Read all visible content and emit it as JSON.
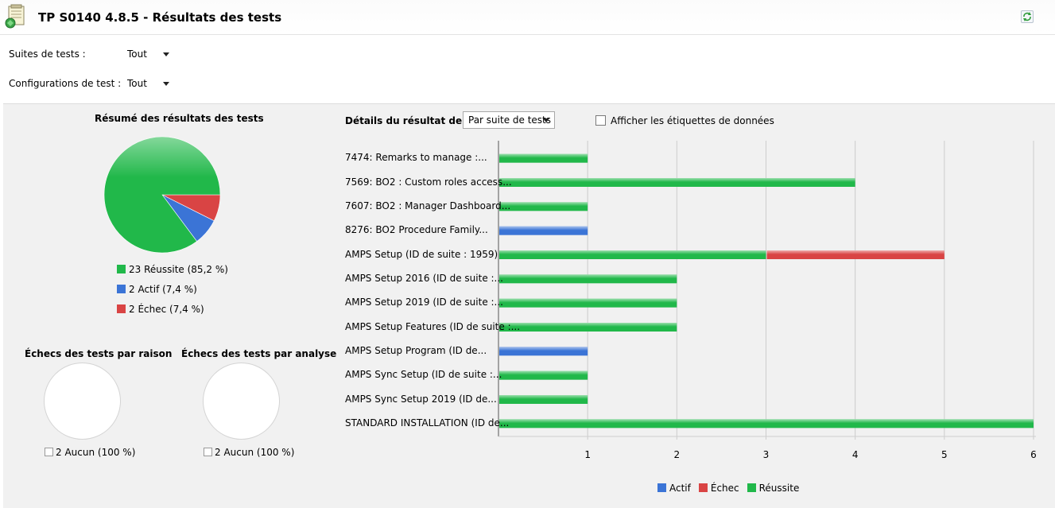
{
  "header": {
    "title": "TP S0140 4.8.5 - Résultats des tests"
  },
  "filters": {
    "suites_label": "Suites de tests :",
    "suites_value": "Tout",
    "configs_label": "Configurations de test :",
    "configs_value": "Tout"
  },
  "summary": {
    "title": "Résumé des résultats des tests",
    "legend": [
      {
        "label": "23 Réussite (85,2 %)",
        "color": "#21b84a"
      },
      {
        "label": "2 Actif (7,4 %)",
        "color": "#3b74d6"
      },
      {
        "label": "2 Échec (7,4 %)",
        "color": "#d94444"
      }
    ],
    "pie": [
      {
        "value": 23,
        "color": "#21b84a"
      },
      {
        "value": 2,
        "color": "#3b74d6"
      },
      {
        "value": 2,
        "color": "#d94444"
      }
    ]
  },
  "failures_by_reason": {
    "title": "Échecs des tests par raison",
    "legend": "2 Aucun (100 %)"
  },
  "failures_by_analysis": {
    "title": "Échecs des tests par analyse",
    "legend": "2 Aucun (100 %)"
  },
  "details": {
    "title": "Détails du résultat de test",
    "select_value": "Par suite de tests",
    "show_labels_text": "Afficher les étiquettes de données"
  },
  "chart_data": {
    "type": "bar",
    "orientation": "horizontal",
    "stacked": true,
    "categories": [
      "7474: Remarks to manage :...",
      "7569: BO2 : Custom roles access...",
      "7607: BO2 : Manager Dashboard...",
      "8276: BO2 Procedure Family...",
      "AMPS Setup (ID de suite : 1959)",
      "AMPS Setup 2016 (ID de suite :...",
      "AMPS Setup 2019 (ID de suite :...",
      "AMPS Setup Features (ID de suite :...",
      "AMPS Setup Program (ID de...",
      "AMPS Sync Setup (ID de suite :...",
      "AMPS Sync Setup 2019 (ID de...",
      "STANDARD INSTALLATION (ID de..."
    ],
    "series": [
      {
        "name": "Réussite",
        "color": "#21b84a",
        "values": [
          1,
          4,
          1,
          0,
          3,
          2,
          2,
          2,
          0,
          1,
          1,
          6
        ]
      },
      {
        "name": "Échec",
        "color": "#d94444",
        "values": [
          0,
          0,
          0,
          0,
          2,
          0,
          0,
          0,
          0,
          0,
          0,
          0
        ]
      },
      {
        "name": "Actif",
        "color": "#3b74d6",
        "values": [
          0,
          0,
          0,
          1,
          0,
          0,
          0,
          0,
          1,
          0,
          0,
          0
        ]
      }
    ],
    "legend_order": [
      "Actif",
      "Échec",
      "Réussite"
    ],
    "xlim": [
      0,
      6
    ],
    "xticks": [
      "1",
      "2",
      "3",
      "4",
      "5",
      "6"
    ],
    "grid": true,
    "legend_position": "bottom"
  }
}
